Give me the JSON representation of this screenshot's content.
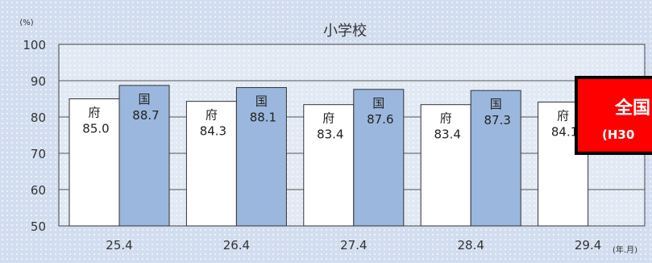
{
  "chart_data": {
    "type": "bar",
    "title": "小学校",
    "y_unit": "(%)",
    "x_unit": "(年.月)",
    "ylim": [
      50,
      100
    ],
    "yticks": [
      50,
      60,
      70,
      80,
      90,
      100
    ],
    "categories": [
      "25.4",
      "26.4",
      "27.4",
      "28.4",
      "29.4"
    ],
    "series": [
      {
        "name": "府",
        "color": "#ffffff",
        "values": [
          85.0,
          84.3,
          83.4,
          83.4,
          84.1
        ]
      },
      {
        "name": "国",
        "color": "#9bb7dd",
        "values": [
          88.7,
          88.1,
          87.6,
          87.3,
          null
        ]
      }
    ],
    "value_labels": {
      "府": [
        "85.0",
        "84.3",
        "83.4",
        "83.4",
        "84.1"
      ],
      "国": [
        "88.7",
        "88.1",
        "87.6",
        "87.3",
        ""
      ]
    },
    "grid": true,
    "legend": "none"
  },
  "annotation": {
    "line1": "全国",
    "line2": "(H30",
    "color": "#ff0000"
  }
}
